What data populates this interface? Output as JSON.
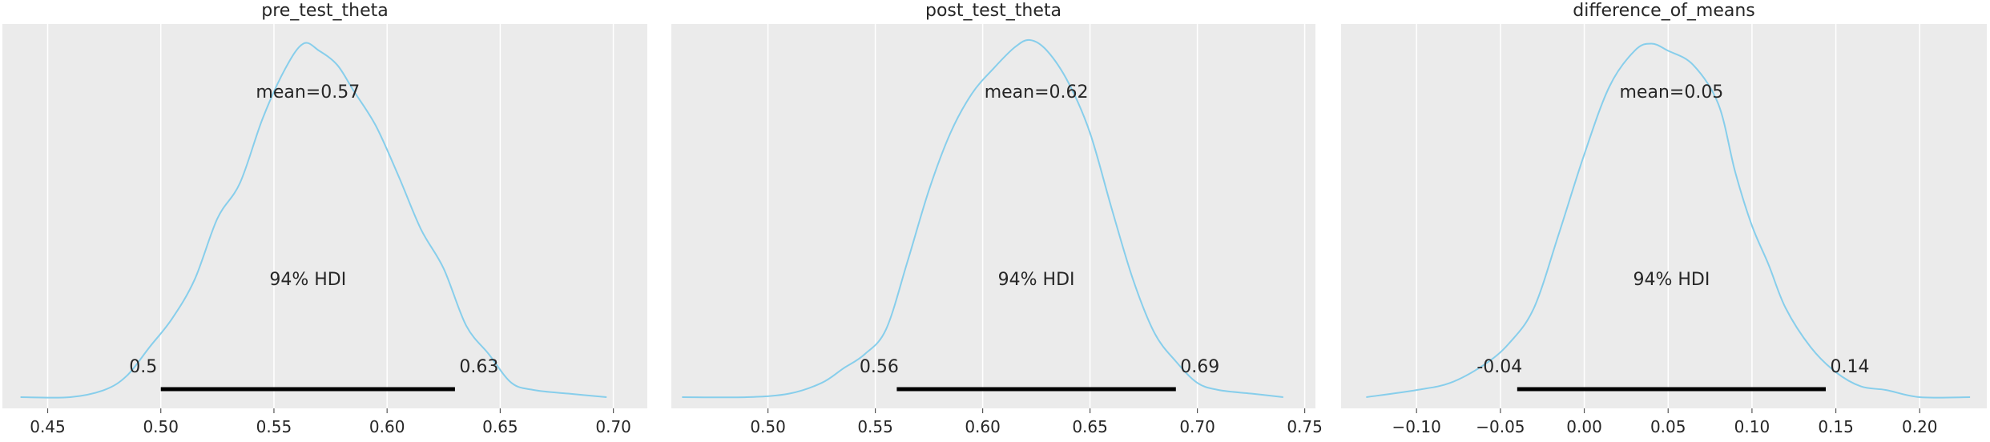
{
  "chart_data": [
    {
      "type": "area",
      "title": "pre_test_theta",
      "xlim": [
        0.43,
        0.715
      ],
      "ticks": [
        0.45,
        0.5,
        0.55,
        0.6,
        0.65,
        0.7
      ],
      "tick_labels": [
        "0.45",
        "0.50",
        "0.55",
        "0.60",
        "0.65",
        "0.70"
      ],
      "density_x": [
        0.438,
        0.46,
        0.475,
        0.485,
        0.495,
        0.505,
        0.515,
        0.525,
        0.535,
        0.545,
        0.555,
        0.563,
        0.57,
        0.578,
        0.585,
        0.595,
        0.605,
        0.615,
        0.625,
        0.635,
        0.645,
        0.655,
        0.665,
        0.68,
        0.697
      ],
      "density_y": [
        0.0,
        0.0,
        0.02,
        0.06,
        0.14,
        0.22,
        0.33,
        0.5,
        0.6,
        0.78,
        0.92,
        0.99,
        0.97,
        0.93,
        0.86,
        0.76,
        0.62,
        0.47,
        0.36,
        0.2,
        0.12,
        0.04,
        0.02,
        0.01,
        0.0
      ],
      "mean_label": "mean=0.57",
      "hdi_label": "94% HDI",
      "hdi": [
        0.5,
        0.63
      ],
      "hdi_low_label": "0.5",
      "hdi_high_label": "0.63"
    },
    {
      "type": "area",
      "title": "post_test_theta",
      "xlim": [
        0.455,
        0.755
      ],
      "ticks": [
        0.45,
        0.5,
        0.55,
        0.6,
        0.65,
        0.7,
        0.75
      ],
      "tick_labels": [
        "0.45",
        "0.50",
        "0.55",
        "0.60",
        "0.65",
        "0.70",
        "0.75"
      ],
      "density_x": [
        0.46,
        0.49,
        0.51,
        0.525,
        0.535,
        0.545,
        0.555,
        0.565,
        0.575,
        0.585,
        0.595,
        0.605,
        0.615,
        0.622,
        0.63,
        0.64,
        0.65,
        0.66,
        0.67,
        0.68,
        0.69,
        0.7,
        0.71,
        0.725,
        0.74
      ],
      "density_y": [
        0.0,
        0.0,
        0.01,
        0.04,
        0.08,
        0.12,
        0.19,
        0.38,
        0.58,
        0.74,
        0.85,
        0.92,
        0.98,
        1.0,
        0.97,
        0.88,
        0.74,
        0.53,
        0.33,
        0.18,
        0.1,
        0.04,
        0.02,
        0.01,
        0.0
      ],
      "mean_label": "mean=0.62",
      "hdi_label": "94% HDI",
      "hdi": [
        0.56,
        0.69
      ],
      "hdi_low_label": "0.56",
      "hdi_high_label": "0.69"
    },
    {
      "type": "area",
      "title": "difference_of_means",
      "xlim": [
        -0.145,
        0.24
      ],
      "ticks": [
        -0.1,
        -0.05,
        0.0,
        0.05,
        0.1,
        0.15,
        0.2
      ],
      "tick_labels": [
        "−0.10",
        "−0.05",
        "0.00",
        "0.05",
        "0.10",
        "0.15",
        "0.20"
      ],
      "density_x": [
        -0.13,
        -0.1,
        -0.08,
        -0.06,
        -0.045,
        -0.03,
        -0.015,
        0.0,
        0.015,
        0.03,
        0.04,
        0.05,
        0.065,
        0.08,
        0.09,
        0.1,
        0.11,
        0.12,
        0.135,
        0.15,
        0.165,
        0.18,
        0.2,
        0.23
      ],
      "density_y": [
        0.0,
        0.02,
        0.04,
        0.09,
        0.15,
        0.25,
        0.46,
        0.68,
        0.87,
        0.97,
        0.99,
        0.97,
        0.93,
        0.82,
        0.63,
        0.48,
        0.37,
        0.25,
        0.14,
        0.07,
        0.03,
        0.02,
        0.0,
        0.0
      ],
      "mean_label": "mean=0.05",
      "hdi_label": "94% HDI",
      "hdi": [
        -0.04,
        0.144
      ],
      "hdi_low_label": "-0.04",
      "hdi_high_label": "0.14"
    }
  ]
}
